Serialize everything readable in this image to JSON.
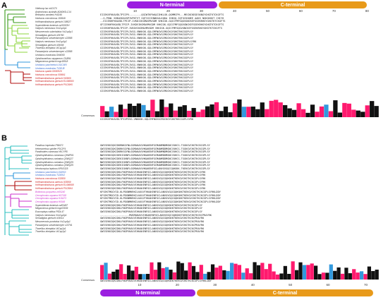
{
  "colors": {
    "purple": "#9b1fe0",
    "orange": "#e89a1a",
    "pink": "#ff1a6e",
    "blue": "#3399dd",
    "green_light": "#8cd63c",
    "green_dark": "#3a9a1a",
    "red_branch": "#b01010",
    "teal": "#2fc0c0",
    "magenta": "#cc33cc",
    "blue_text": "#3366cc",
    "red_text": "#cc2222"
  },
  "panelA": {
    "letter": "A",
    "nterm_label": "N-terminal",
    "cterm_label": "C-terminal",
    "ruler": [
      "10",
      "20",
      "30",
      "40",
      "50",
      "60",
      "70",
      "80"
    ],
    "consensus_label": "Consensus",
    "consensus_seq": "GIIEKVFKKAVDLTPIVPVVG-VNKKGK-GQLCMFNGVGCMGCKGYGHGTKKCGGPLSYRK",
    "names": [
      {
        "t": "Viettocop lac m10170",
        "c": "#333"
      },
      {
        "t": "Androctonus australis A0A0K0LC14",
        "c": "#333"
      },
      {
        "t": "Belisarius xambeui H4O46",
        "c": "#333"
      },
      {
        "t": "Hadrurus concolorous 100649",
        "c": "#333"
      },
      {
        "t": "Hoffmannihadrurus gertschi 108027",
        "c": "#333"
      },
      {
        "t": "Superstitionia donensis sd10033H",
        "c": "#333"
      },
      {
        "t": "Vaejovis mexicanus VmCsp1p1",
        "c": "#333"
      },
      {
        "t": "Mesomexovis subcristatus VsCsp1p1",
        "c": "#333"
      },
      {
        "t": "Serradigitus gertschi c05780",
        "c": "#333"
      },
      {
        "t": "Paravaejovis schwenkmeyeri c22885",
        "c": "#333"
      },
      {
        "t": "Vaejovis mexicanus VmCsp1p2",
        "c": "#333"
      },
      {
        "t": "Serradigitus gertschi c06095",
        "c": "#333"
      },
      {
        "t": "Thorellius intrepidus VtCsp1p3",
        "c": "#333"
      },
      {
        "t": "Paravaejovis schwenkmeyeri c22885",
        "c": "#333"
      },
      {
        "t": "Urodacus manicatus DN4060",
        "c": "#333"
      },
      {
        "t": "Opisthacanthus cayaporum C5J891",
        "c": "#333"
      },
      {
        "t": "Megacormus gertschi mgc18518",
        "c": "#333"
      },
      {
        "t": "Urodacus yaschenkoi L0GCW0",
        "c": "#3366cc"
      },
      {
        "t": "Urodacus manicatus T1DEJ8",
        "c": "#3366cc"
      },
      {
        "t": "Hadrurus spadix DN00029",
        "c": "#cc2222"
      },
      {
        "t": "Hadrurus concolorous 005661",
        "c": "#cc2222"
      },
      {
        "t": "Hoffmannihadrurus gertschi 000905",
        "c": "#cc2222"
      },
      {
        "t": "Hoffmannihadrurus gertschi EL696900",
        "c": "#cc2222"
      },
      {
        "t": "Hoffmannihadrurus gertschi P0C6W5",
        "c": "#cc2222"
      }
    ],
    "seqs": [
      "EIIEKVFKKAVDLTPIIPV--------QGIWTKPAKAIIHKLGK-QGMMCFM---MECNCKEGESKNGYGHGTKTCKGFTS",
      "--G-PEWL KHKAVDAVGPIVPKTVT GQTIGIIHWKSALKQKA IHKSQ-IQTGCKGNEE AAKS NGKGKHGT CHIYH",
      "--EIIEKHFKKAVDLTPIIP-IVKDIIKGMAVMVGDM VHKIGK-GQICFMFGQGVGNCKEFGSEKRHGYGHGTKTCKGFTS",
      "GFIIEKHFKKAVDLTPIIP-IVKDVIKGMAVMVGDM VHKIGK-GQICFMFGQGVGNCKEFGSEKRHGYGHGTKTCKGFTS",
      "GIIEKHFKKAVDLTPIIP-IVKDVIKGMAVMVGDM VHKIGK-GQICFMFGQGVGNCKEFGSEKRHGYGHGTKTCKGFTS",
      "GIIEKVFKKAVDLTPIIPLIVGG-VNKKGK-GQLCMFNGVGCMGCKGYGHGTKKCGGPLSY",
      "GIIEKVFKKAVDLTPIIPLIVGG-VNKKGK-GQLCMFNGVGCMGCKGYGHGTKKCGGPLSY",
      "GIIEKVFKKAVDLTPIIPLIVGG-VNKKGK-GQLCMFNGVGCMGCKGYGHGTKKCGGPLSY",
      "GIIEKVFKKAVDLTPIIPLIVGG-VNKKGK-GQLCMFNGVGCMGCKGYGHGTKKCGGPLSYRK",
      "GIIEKVFKKAVDLTPIIPLIVGG-VNKKGK-GQLCMFNGVGCMGCKGYGHGTKKCGGPLSY",
      "GIIEKVFKKAVDLTPIIPLIVGG-VNKKGK-GQLCMFNGVGCMGCKGYGHGTKKCGGPLSY",
      "GIIEKVFKKAVDLTPIIPLIVGG-VNKKGK-GQLCMFNGVGCMGCKGYGHGTKKCGGPLSY",
      "GIIEKVFKKAVDLTPIIPLIVGG-VNKKGK-GQLCMFNGVGCMGCKGYGHGTKKCGGPLSY",
      "GIIEKVFKKAVDLTPIIPLIVGG-VNKKGK-GQLCMFNGVGCMGCKGYGHGTKKCGGPLSY",
      "GIIEKVFKKAVDLTPIIPLIVGG-VNKKGK-GQLCMFNGVGCMGCKGYGHGTKKCGGPLSY",
      "GIIEKVFKKAVDLTPIIPLIVGG-VNKKGK-GQLCMFNGVGCMGCKGYGHGTKKCGGPLSY",
      "GIIEKVFKKAVDLTPIIPLIVGG-VNKKGK-GQLCMFNGVGCMGCKGYGHGTKKCGGPLSY",
      "GIIEKVFKKAVDLTPIIPLIVGG-VNKKGK-GQLCMFNGVGCMGCKGYGHGTKKCGGPLSY",
      "GIIEKVFKKAVDLTPIIPLIVGG-VNKKGK-GQLCMFNGVGCMGCKGYGHGTKKCGGPLSY",
      "GIIEKVFKKAVDLTPIIPLIVGG-VNKKGK-GQLCMFNGVGCMGCKGYGHGTKKCGGPLSY",
      "GIIEKVFKKAVDLTPIIPLIVGG-VNKKGK-GQLCMFNGVGCMGCKGYGHGTKKCGGPLSY",
      "GIIEKVFKKAVDLTPIIPLIVGG-VNKKGK-GQLCMFNGVGCMGCKGYGHGTKKCGGPLSY",
      "GIIEKVFKKAVDLTPIIPLIVGG-VNKKGK-GQLCMFNGVGCMGCKGYGHGTKKCGGPLSY",
      "GIIEKVFKKAVDLTPIIPLIVGG-VNKKGK-GQLCMFNGVGCMGCKGYGHGTKKCGGPLSY"
    ]
  },
  "panelB": {
    "letter": "B",
    "nterm_label": "N-terminal",
    "cterm_label": "C-terminal",
    "ruler": [
      "10",
      "20",
      "30",
      "40",
      "50",
      "60",
      "70"
    ],
    "consensus_label": "Consensus",
    "consensus_seq": "GWISEKKIQKIDKLFNGPVKAVVIHKAKENFGCLANVGVGQCGQHGKKTKEKGVCHGTKCKCGPLSYRKLDDY",
    "names": [
      {
        "t": "Pandinus imperator P56672",
        "c": "#333"
      },
      {
        "t": "Heterometrus spinifer P0C2F4",
        "c": "#333"
      },
      {
        "t": "Pandinoides cammaus H0CYR5",
        "c": "#333"
      },
      {
        "t": "Opisthophthalmus cammaus Q5WR01",
        "c": "#333"
      },
      {
        "t": "Opisthophthalmus carinatus Q5WQ27",
        "c": "#333"
      },
      {
        "t": "Opisthophthalmus carinatus Q5WQZ9",
        "c": "#333"
      },
      {
        "t": "Opisthophthalmus carinatus Q5WQZ5",
        "c": "#333"
      },
      {
        "t": "Hemiscorpius lepturus NF6I1325",
        "c": "#333"
      },
      {
        "t": "Urodacus yaschenkoi L0GBS3",
        "c": "#3366cc"
      },
      {
        "t": "Urodacus manicatus T1DEK2",
        "c": "#3366cc"
      },
      {
        "t": "Hadrurus concolorous 033550",
        "c": "#cc2222"
      },
      {
        "t": "Hoffmannihadrurus aztecus 003869",
        "c": "#cc2222"
      },
      {
        "t": "Hoffmannihadrurus gertschi EL696908",
        "c": "#cc2222"
      },
      {
        "t": "Hoffmannihadrurus gertschi P0C8W4",
        "c": "#cc2222"
      },
      {
        "t": "Bothriurus purpureus m05240",
        "c": "#cc33cc"
      },
      {
        "t": "Cercophonius squama H07158",
        "c": "#cc33cc"
      },
      {
        "t": "Cercophonius squama H16473",
        "c": "#cc33cc"
      },
      {
        "t": "Cercophonius squama H0049",
        "c": "#cc33cc"
      },
      {
        "t": "Superstitionia donensis sd03497",
        "c": "#333"
      },
      {
        "t": "Megacormus gertschi mgc03939",
        "c": "#333"
      },
      {
        "t": "Euscorpiops validus P0DL47",
        "c": "#333"
      },
      {
        "t": "Vaejovis mexicanus VmCsp2p1",
        "c": "#333"
      },
      {
        "t": "Serradigitus gertschi c04014",
        "c": "#333"
      },
      {
        "t": "Mesomexovis punctatus VsCsp1p1",
        "c": "#333"
      },
      {
        "t": "Paravaejovis schwenkmeyeri c23791",
        "c": "#333"
      },
      {
        "t": "Thorellius intrepidus VtCsp2p1",
        "c": "#333"
      },
      {
        "t": "Thorellius intrepidus VtCsp2p2",
        "c": "#333"
      }
    ],
    "seqs": [
      "GWISEKKIQKIDKRNKGYNLGGMAKAVVHKAKENFGCMANMNDMGNCCKHCG-TSGKGVCHGTKCKCGPLSY",
      "GWISEKKIQKIDKRKSGYNLGGMAKAVVHKAKENFGCMANMDDMGNCCKHCG-TSGKGVCHGTKCKCGPLSY",
      "GWISEKKIQKIDKRKSGYNLGGMAKAVVHKAKENFGCMANMNDMGNCCKHCG-TSGKGVCHGTKCKCGPLSY",
      "NWISEKKIQKIDEKIGKNFLGGMAKAVVHKAKENFGCMANMDDMGNCCKHCG-TSGKGVCHGTKCKCGPLSY",
      "NWISEKKIQKIDEKIGKNFLGGMAKAVVHKAKENFGCMANMDDMGNCCKHCG-TSGKGVCHGTKCKCGPLSY",
      "NWISEKKIQKIDEKIGKNFLGGMAKAVVHKAKENFGCMANMDDMGNCCKHCG-TSGKGVCHGTKCKCGPLSY",
      "NWISEKKIQKIDEKIGKNFLGGMAKAVVHKAKENFGCMANMDDMGNCCKHCG-TSGKGVCHGTKCKCGPLSY",
      "GWISEKKIQKIDEKIGKNFLGGMAKAVVHKAKENFGCLANVGVGQCGQHGKK-TKEKGVCHGTKCKCGPLSY",
      "GWISEKKIQKIDKLFNGPVKAVVIHKAKENFGCLANVGVGQCGQHGKKTKEKGVCHGTKCKCGPLSYRK",
      "GWISEKKIQKIDKLFNGPVKAVVIHKAKENFGCLANVGVGQCGQHGKKTKEKGVCHGTKCKCGPLSYRK",
      "GWISEKKIQKIDKLFNGPVKAVVIHKAKENFGCLANVGVGQCGQHGKKTKEKGVCHGTKCKCGPLSYRK",
      "GWISEKKIQKIDKLFNGPVKAVVIHKAKENFGCLANVGVGQCGQHGKKTKEKGVCHGTKCKCGPLSYRK",
      "GWISEKKIQKIDKLFNGPVKAVVIHKAKENFGCLANVGVGQCGQHGKKTKEKGVCHGTKCKCGPLSYRK",
      "GWISEKKIQKIDKLFNGPVKAVVIHKAKENFGCLANVGVGQCGQHGKKTKEKGVCHGTKCKCGPLSYRK",
      "KFSEKTMGGYID-KLPDGNMKRKILKAVVTHKAKENFGCLANVGVGQCGQHGKKTKEKGVCHGTKCKCGPLSYRKLDDY",
      "KFSEKTMGGYID-KLPDGNMKRKILKAVVTHKAKENFGCLANVGVGQCGQHGKKTKEKGVCHGTKCKCGPLSYRKLDDY",
      "KFSEKTMGGYID-KLPDGNMKRKILKAVVTHKAKENFGCLANVGVGQCGQHGKKTKEKGVCHGTKCKCGPLSYRKLDDY",
      "KFSEKTMGGYID-KLPDGNMKRKILKAVVTHKAKENFGCLANVGVGQCGQHGKKTKEKGVCHGTKCKCGPLSYRKLDDY",
      "GWISEKKIQKIDKLFNGPVKAVVIHKAKENFGCLANVGVGQCGQHGKKTKEKGVCHGTKCKCGPLSY",
      "GWISEKKIQKIDKLFNGPVKAVVIHKAKENFGCLANVGVGQCGQHGKKTKEKGVCHGTKCKCGPLSY",
      "GWISEKKIQKIDKLFNGPVKAVVIHKAKENFGCLANVGVGQCGQHGKKTKEKGVCHGTKCKCGPLSY",
      "-------------------MVKMAKAVVIHKAKENFGCLANVGVGQCGQHGKKTKEKGVCHGTKCKCPRAYRK",
      "GWISEKKIQKIDKLFNGPVKAVVIHKAKENFGCLANVGVGQCGQHGKKTKEKGVCHGTKCKCPRAYRK",
      "GWISEKKIQKIDKLFNGPVKAVVIHKAKENFGCLANVGVGQCGQHGKKTKEKGVCHGTKCKCPRAYRK",
      "GWISEKKIQKIDKLFNGPVKAVVIHKAKENFGCLANVGVGQCGQHGKKTKEKGVCHGTKCKCPRAYRK",
      "GWISEKKIQKIDKLFNGPVKAVVIHKAKENFGCLANVGVGQCGQHGKKTKEKGVCHGTKCKCPRAYRK",
      "GWISEKKIQKIDKLFNGPVKAVVIHKAKENFGCLANVGVGQCGQHGKKTKEKGVCHGTKCKCPRAYRK"
    ]
  }
}
